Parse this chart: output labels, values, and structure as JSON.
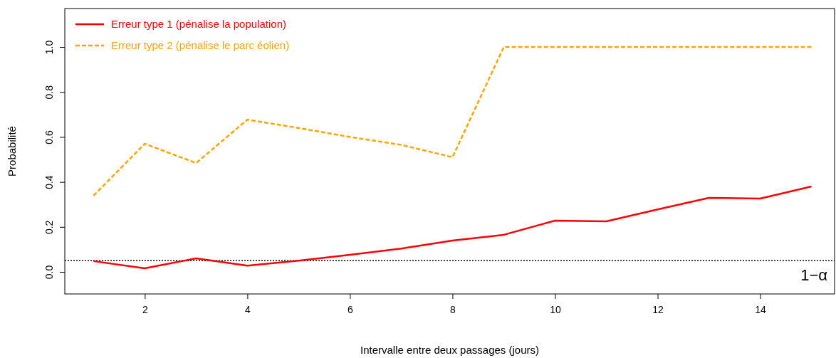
{
  "chart_data": {
    "type": "line",
    "xlabel": "Intervalle entre deux passages (jours)",
    "ylabel": "Probabilité",
    "x": [
      1,
      2,
      3,
      4,
      5,
      6,
      7,
      8,
      9,
      10,
      11,
      12,
      13,
      14,
      15
    ],
    "series": [
      {
        "name": "Erreur type 1 (pénalise la population)",
        "color": "#ff0000",
        "line_style": "solid",
        "values": [
          0.048,
          0.016,
          0.06,
          0.028,
          0.05,
          0.076,
          0.104,
          0.139,
          0.165,
          0.228,
          0.225,
          0.278,
          0.329,
          0.326,
          0.38
        ]
      },
      {
        "name": "Erreur type 2 (pénalise le parc éolien)",
        "color": "#ffa500",
        "line_style": "dashed",
        "values": [
          0.339,
          0.57,
          0.484,
          0.677,
          0.64,
          0.6,
          0.565,
          0.51,
          1.0,
          1.0,
          1.0,
          1.0,
          1.0,
          1.0,
          1.0
        ]
      }
    ],
    "xlim": [
      0.44,
      15.45
    ],
    "ylim": [
      -0.098,
      1.171
    ],
    "xticks": [
      2,
      4,
      6,
      8,
      10,
      12,
      14
    ],
    "yticks": [
      {
        "value": 0,
        "label": "0.0"
      },
      {
        "value": 0.2,
        "label": "0.2"
      },
      {
        "value": 0.4,
        "label": "0.4"
      },
      {
        "value": 0.6,
        "label": "0.6"
      },
      {
        "value": 0.8,
        "label": "0.8"
      },
      {
        "value": 1,
        "label": "1.0"
      }
    ],
    "ref_lines": [
      {
        "axis": "y",
        "value": 0.05,
        "label": "1−α",
        "color": "#000000",
        "line_style": "dotted"
      }
    ],
    "grid": false,
    "legend": "top left",
    "marker": "none"
  }
}
